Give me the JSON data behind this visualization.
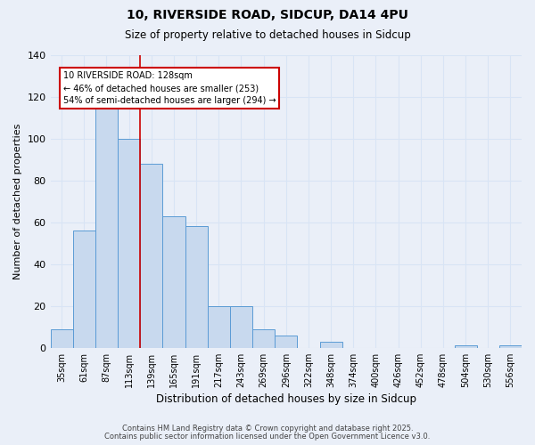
{
  "title": "10, RIVERSIDE ROAD, SIDCUP, DA14 4PU",
  "subtitle": "Size of property relative to detached houses in Sidcup",
  "xlabel": "Distribution of detached houses by size in Sidcup",
  "ylabel": "Number of detached properties",
  "bar_labels": [
    "35sqm",
    "61sqm",
    "87sqm",
    "113sqm",
    "139sqm",
    "165sqm",
    "191sqm",
    "217sqm",
    "243sqm",
    "269sqm",
    "296sqm",
    "322sqm",
    "348sqm",
    "374sqm",
    "400sqm",
    "426sqm",
    "452sqm",
    "478sqm",
    "504sqm",
    "530sqm",
    "556sqm"
  ],
  "bar_values": [
    9,
    56,
    116,
    100,
    88,
    63,
    58,
    20,
    20,
    9,
    6,
    0,
    3,
    0,
    0,
    0,
    0,
    0,
    1,
    0,
    1
  ],
  "bar_color": "#c8d9ee",
  "bar_edge_color": "#5b9bd5",
  "background_color": "#eaeff8",
  "grid_color": "#d8e4f5",
  "ylim": [
    0,
    140
  ],
  "yticks": [
    0,
    20,
    40,
    60,
    80,
    100,
    120,
    140
  ],
  "property_line_x": 3.5,
  "property_line_color": "#cc0000",
  "annotation_line1": "10 RIVERSIDE ROAD: 128sqm",
  "annotation_line2": "← 46% of detached houses are smaller (253)",
  "annotation_line3": "54% of semi-detached houses are larger (294) →",
  "annotation_box_color": "#ffffff",
  "annotation_border_color": "#cc0000",
  "footer1": "Contains HM Land Registry data © Crown copyright and database right 2025.",
  "footer2": "Contains public sector information licensed under the Open Government Licence v3.0."
}
